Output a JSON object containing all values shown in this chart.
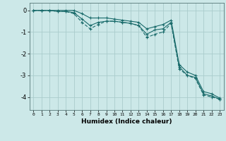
{
  "xlabel": "Humidex (Indice chaleur)",
  "background_color": "#cce8e8",
  "grid_color": "#aacccc",
  "line_color": "#1a6b6b",
  "xlim": [
    -0.5,
    23.5
  ],
  "ylim": [
    -4.6,
    0.35
  ],
  "yticks": [
    0,
    -1,
    -2,
    -3,
    -4
  ],
  "xticks": [
    0,
    1,
    2,
    3,
    4,
    5,
    6,
    7,
    8,
    9,
    10,
    11,
    12,
    13,
    14,
    15,
    16,
    17,
    18,
    19,
    20,
    21,
    22,
    23
  ],
  "line1_x": [
    0,
    1,
    2,
    3,
    4,
    5,
    6,
    7,
    8,
    9,
    10,
    11,
    12,
    13,
    14,
    15,
    16,
    17,
    18,
    19,
    20,
    21,
    22,
    23
  ],
  "line1_y": [
    0.0,
    0.0,
    0.0,
    -0.05,
    -0.05,
    -0.1,
    -0.4,
    -0.7,
    -0.55,
    -0.5,
    -0.5,
    -0.55,
    -0.6,
    -0.7,
    -1.1,
    -0.9,
    -0.85,
    -0.55,
    -2.6,
    -3.0,
    -3.1,
    -3.85,
    -3.95,
    -4.1
  ],
  "line2_x": [
    0,
    1,
    2,
    3,
    4,
    5,
    6,
    7,
    8,
    9,
    10,
    11,
    12,
    13,
    14,
    15,
    16,
    17,
    18,
    19,
    20,
    21,
    22,
    23
  ],
  "line2_y": [
    0.0,
    0.0,
    0.0,
    -0.05,
    -0.05,
    -0.15,
    -0.55,
    -0.85,
    -0.65,
    -0.5,
    -0.5,
    -0.55,
    -0.6,
    -0.7,
    -1.25,
    -1.1,
    -1.0,
    -0.6,
    -2.7,
    -3.0,
    -3.15,
    -3.9,
    -4.0,
    -4.1
  ],
  "line3_x": [
    0,
    1,
    2,
    3,
    4,
    5,
    6,
    7,
    8,
    9,
    10,
    11,
    12,
    13,
    14,
    15,
    16,
    17,
    18,
    19,
    20,
    21,
    22,
    23
  ],
  "line3_y": [
    0.0,
    0.0,
    0.0,
    0.0,
    0.0,
    0.0,
    -0.15,
    -0.35,
    -0.35,
    -0.35,
    -0.4,
    -0.45,
    -0.5,
    -0.55,
    -0.85,
    -0.75,
    -0.65,
    -0.45,
    -2.5,
    -2.85,
    -3.0,
    -3.75,
    -3.85,
    -4.05
  ]
}
